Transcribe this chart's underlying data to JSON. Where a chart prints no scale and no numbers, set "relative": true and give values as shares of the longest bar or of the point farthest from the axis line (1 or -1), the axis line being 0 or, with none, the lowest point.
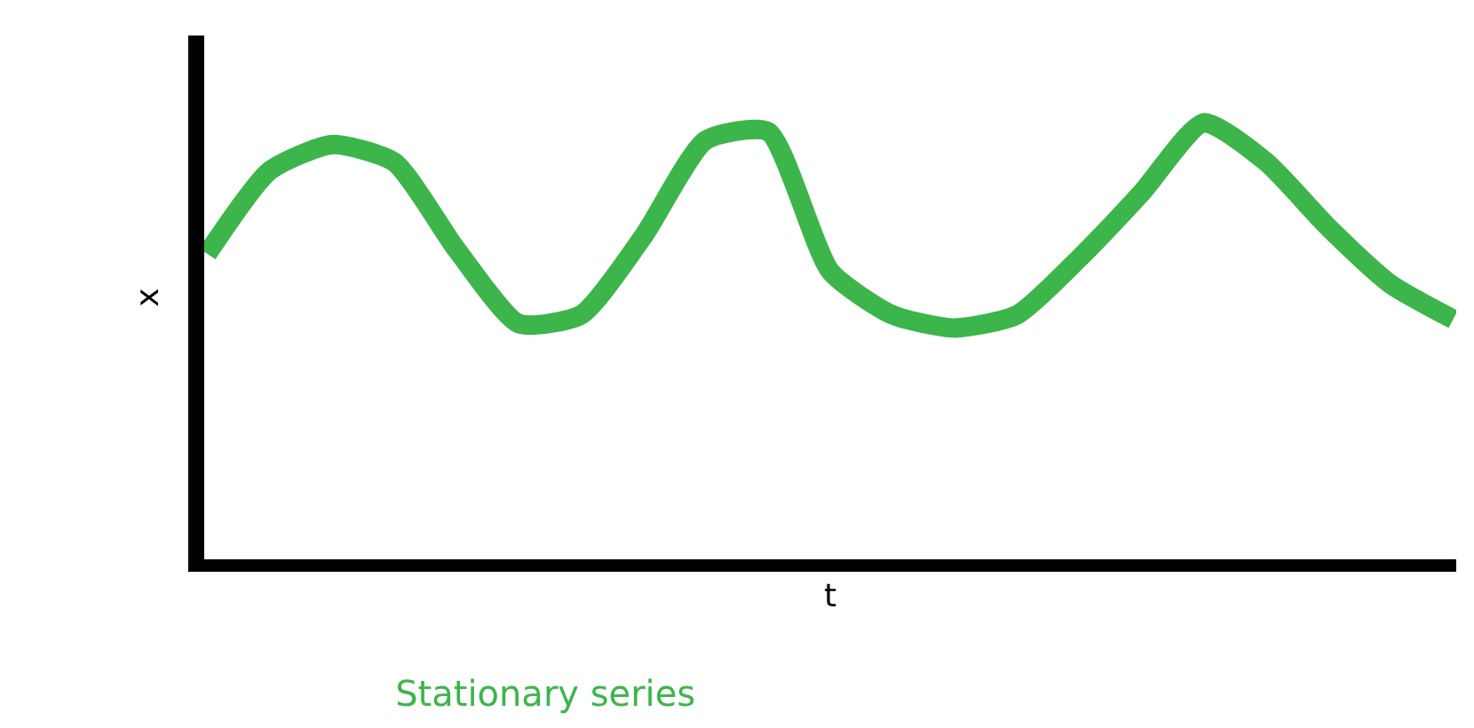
{
  "chart_data": {
    "type": "line",
    "title": "Stationary series",
    "xlabel": "t",
    "ylabel": "x",
    "relative": true,
    "marker": "none",
    "line_style": "solid",
    "categories": [
      null,
      null,
      null,
      null,
      null,
      null,
      null,
      null,
      null,
      null,
      null,
      null,
      null,
      null,
      null,
      null,
      null,
      null,
      null,
      null,
      null
    ],
    "series": [
      {
        "color": "#3cb54a",
        "values": [
          0.7,
          0.89,
          0.95,
          0.91,
          0.71,
          0.54,
          0.56,
          0.74,
          0.96,
          0.98,
          0.66,
          0.56,
          0.53,
          0.56,
          0.69,
          0.84,
          1.0,
          0.91,
          0.76,
          0.63,
          0.55
        ]
      }
    ]
  }
}
